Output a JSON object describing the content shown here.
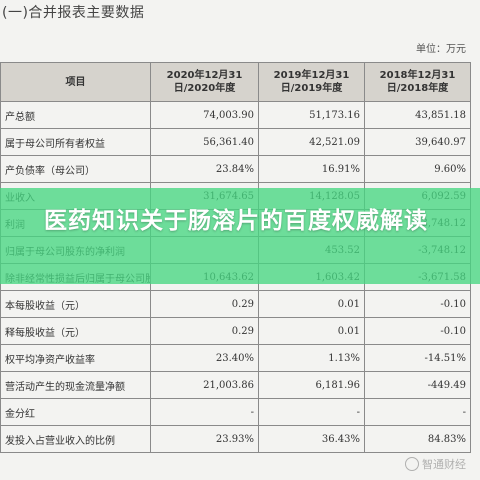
{
  "document": {
    "heading": "(一)合并报表主要数据",
    "unit": "单位：万元"
  },
  "table": {
    "headers": [
      "项目",
      "2020年12月31日/2020年度",
      "2019年12月31日/2019年度",
      "2018年12月31日/2018年度"
    ],
    "rows": [
      [
        "产总额",
        "74,003.90",
        "51,173.16",
        "43,851.18"
      ],
      [
        "属于母公司所有者权益",
        "56,361.40",
        "42,521.09",
        "39,640.97"
      ],
      [
        "产负债率（母公司）",
        "23.84%",
        "16.91%",
        "9.60%"
      ],
      [
        "业收入",
        "31,674.65",
        "14,128.05",
        "6,092.59"
      ],
      [
        "利润",
        "",
        "",
        "-3,748.12"
      ],
      [
        "归属于母公司股东的净利润",
        "",
        "453.52",
        "-3,748.12"
      ],
      [
        "除非经常性损益后归属于母公司股东的净利润",
        "10,643.62",
        "1,603.42",
        "-3,671.58"
      ],
      [
        "本每股收益（元）",
        "0.29",
        "0.01",
        "-0.10"
      ],
      [
        "释每股收益（元）",
        "0.29",
        "0.01",
        "-0.10"
      ],
      [
        "权平均净资产收益率",
        "23.40%",
        "1.13%",
        "-14.51%"
      ],
      [
        "营活动产生的现金流量净额",
        "21,003.86",
        "6,181.96",
        "-449.49"
      ],
      [
        "金分红",
        "-",
        "-",
        "-"
      ],
      [
        "发投入占营业收入的比例",
        "23.93%",
        "36.43%",
        "84.83%"
      ]
    ]
  },
  "banner": {
    "title": "医药知识关于肠溶片的百度权威解读",
    "color": "#46d682"
  },
  "watermark": {
    "text": "智通财经"
  }
}
